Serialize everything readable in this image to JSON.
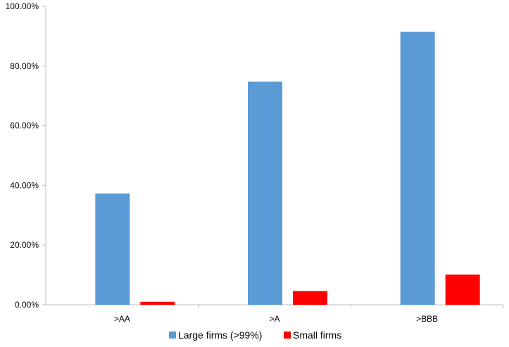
{
  "chart_data": {
    "type": "bar",
    "categories": [
      ">AA",
      ">A",
      ">BBB"
    ],
    "series": [
      {
        "name": "Large firms (>99%)",
        "values": [
          37.3,
          74.8,
          91.5
        ],
        "color": "#5B9BD5"
      },
      {
        "name": "Small firms",
        "values": [
          1.0,
          4.6,
          10.1
        ],
        "color": "#FF0000"
      }
    ],
    "y_ticks": [
      "0.00%",
      "20.00%",
      "40.00%",
      "60.00%",
      "80.00%",
      "100.00%"
    ],
    "y_tick_values": [
      0,
      20,
      40,
      60,
      80,
      100
    ],
    "ylim": [
      0,
      100
    ],
    "title": "",
    "xlabel": "",
    "ylabel": "",
    "grid": false,
    "legend_position": "bottom"
  }
}
